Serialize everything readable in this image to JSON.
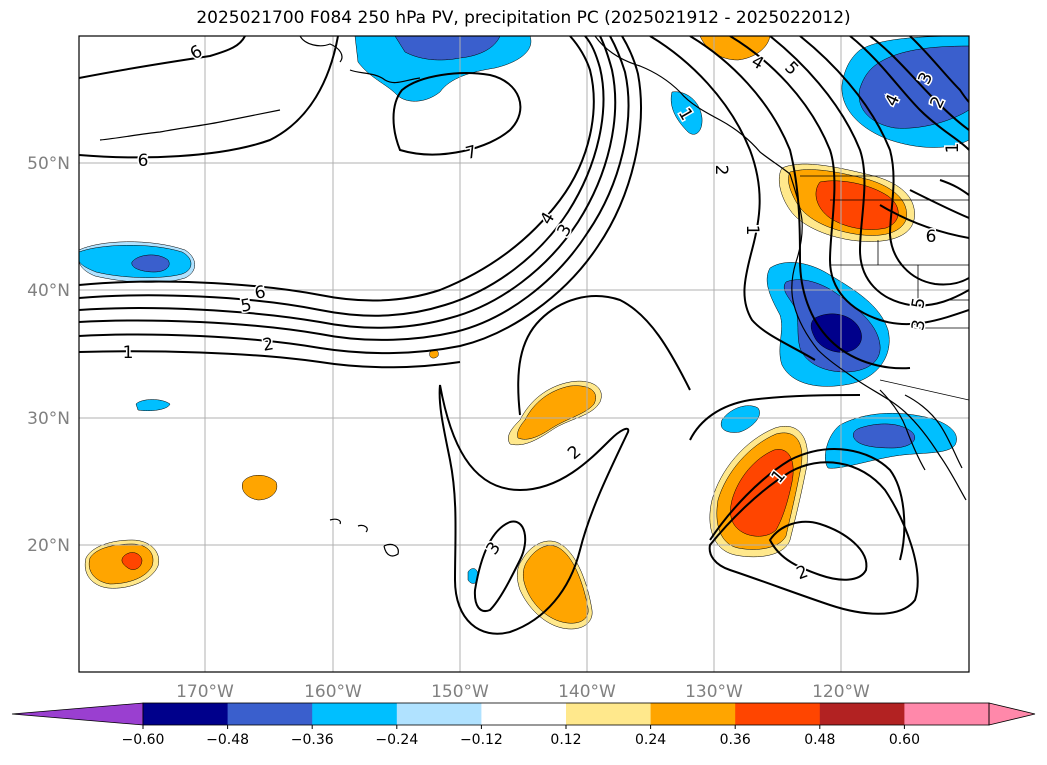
{
  "title": "2025021700 F084 250 hPa PV, precipitation PC (2025021912 - 2025022012)",
  "colors": {
    "neg_extend": "#9a3fd0",
    "neg060": "#00008b",
    "neg048": "#3a5fcd",
    "neg036": "#00bfff",
    "neg024": "#b0e2ff",
    "neutral": "#ffffff",
    "pos012": "#ffe88c",
    "pos024": "#ffa500",
    "pos036": "#ff4500",
    "pos048": "#b22222",
    "pos_extend": "#ff88aa",
    "grid": "#b0b0b0",
    "contour": "#000000",
    "coast": "#000000"
  },
  "map": {
    "lon_labels": [
      "170°W",
      "160°W",
      "150°W",
      "140°W",
      "130°W",
      "120°W"
    ],
    "lat_labels": [
      "50°N",
      "40°N",
      "30°N",
      "20°N"
    ]
  },
  "pv_contour_labels": [
    "6",
    "6",
    "7",
    "5",
    "4",
    "4",
    "3",
    "1",
    "6",
    "5",
    "1",
    "2",
    "4",
    "3",
    "2",
    "1",
    "6",
    "5",
    "3",
    "2",
    "1",
    "2",
    "3",
    "1",
    "2"
  ],
  "colorbar": {
    "ticks": [
      "−0.60",
      "−0.48",
      "−0.36",
      "−0.24",
      "−0.12",
      "0.12",
      "0.24",
      "0.36",
      "0.48",
      "0.60"
    ]
  }
}
